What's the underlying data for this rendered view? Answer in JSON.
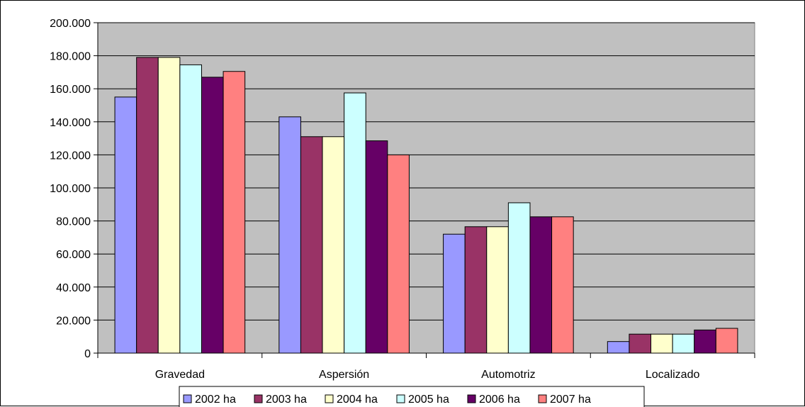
{
  "chart_data": {
    "type": "bar",
    "categories": [
      "Gravedad",
      "Aspersión",
      "Automotriz",
      "Localizado"
    ],
    "series": [
      {
        "name": "2002 ha",
        "color": "#9999ff",
        "values": [
          155000,
          143000,
          72000,
          7000
        ]
      },
      {
        "name": "2003 ha",
        "color": "#993366",
        "values": [
          179000,
          131000,
          76500,
          11500
        ]
      },
      {
        "name": "2004 ha",
        "color": "#ffffcc",
        "values": [
          179000,
          131000,
          76500,
          11500
        ]
      },
      {
        "name": "2005 ha",
        "color": "#ccffff",
        "values": [
          174500,
          157500,
          91000,
          11500
        ]
      },
      {
        "name": "2006 ha",
        "color": "#660066",
        "values": [
          167000,
          128500,
          82500,
          14000
        ]
      },
      {
        "name": "2007 ha",
        "color": "#ff8080",
        "values": [
          170500,
          120000,
          82500,
          15000
        ]
      }
    ],
    "ylim": [
      0,
      200000
    ],
    "yticks": [
      "0",
      "20.000",
      "40.000",
      "60.000",
      "80.000",
      "100.000",
      "120.000",
      "140.000",
      "160.000",
      "180.000",
      "200.000"
    ],
    "plot_background": "#c0c0c0",
    "grid": true,
    "legend_position": "bottom"
  }
}
